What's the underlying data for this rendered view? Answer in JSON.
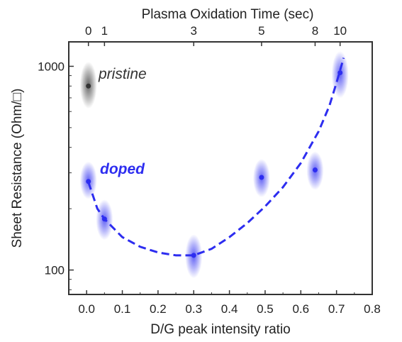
{
  "chart_data": {
    "type": "scatter",
    "xlabel": "D/G peak intensity ratio",
    "x2label": "Plasma Oxidation Time (sec)",
    "ylabel": "Sheet Resistance (Ohm/□)",
    "xlim": [
      -0.05,
      0.8
    ],
    "ylim_log10": [
      1.88,
      3.12
    ],
    "y_scale": "log",
    "grid": false,
    "x_ticks": [
      "0.0",
      "0.1",
      "0.2",
      "0.3",
      "0.4",
      "0.5",
      "0.6",
      "0.7",
      "0.8"
    ],
    "y_ticks": [
      {
        "value": 100,
        "label": "100"
      },
      {
        "value": 1000,
        "label": "1000"
      }
    ],
    "x2_ticks": [
      {
        "x": 0.005,
        "label": "0"
      },
      {
        "x": 0.05,
        "label": "1"
      },
      {
        "x": 0.3,
        "label": "3"
      },
      {
        "x": 0.49,
        "label": "5"
      },
      {
        "x": 0.64,
        "label": "8"
      },
      {
        "x": 0.71,
        "label": "10"
      }
    ],
    "series": [
      {
        "name": "pristine",
        "color": "#333333",
        "points": [
          {
            "x": 0.005,
            "y": 800,
            "err_low": 640,
            "err_high": 1020
          }
        ]
      },
      {
        "name": "doped",
        "color": "#2d2df0",
        "points": [
          {
            "x": 0.005,
            "y": 272,
            "err_low": 230,
            "err_high": 330
          },
          {
            "x": 0.05,
            "y": 178,
            "err_low": 145,
            "err_high": 215
          },
          {
            "x": 0.3,
            "y": 118,
            "err_low": 94,
            "err_high": 145
          },
          {
            "x": 0.49,
            "y": 285,
            "err_low": 235,
            "err_high": 340
          },
          {
            "x": 0.64,
            "y": 310,
            "err_low": 255,
            "err_high": 370
          },
          {
            "x": 0.71,
            "y": 930,
            "err_low": 720,
            "err_high": 1150
          }
        ]
      }
    ],
    "fit_curve": {
      "color": "#2d2df0",
      "style": "dashed",
      "points": [
        [
          0.005,
          270
        ],
        [
          0.03,
          200
        ],
        [
          0.05,
          178
        ],
        [
          0.1,
          145
        ],
        [
          0.15,
          130
        ],
        [
          0.2,
          122
        ],
        [
          0.25,
          118
        ],
        [
          0.3,
          118
        ],
        [
          0.35,
          127
        ],
        [
          0.4,
          145
        ],
        [
          0.45,
          170
        ],
        [
          0.5,
          205
        ],
        [
          0.55,
          255
        ],
        [
          0.6,
          335
        ],
        [
          0.65,
          480
        ],
        [
          0.68,
          640
        ],
        [
          0.7,
          830
        ],
        [
          0.72,
          1100
        ]
      ]
    }
  }
}
